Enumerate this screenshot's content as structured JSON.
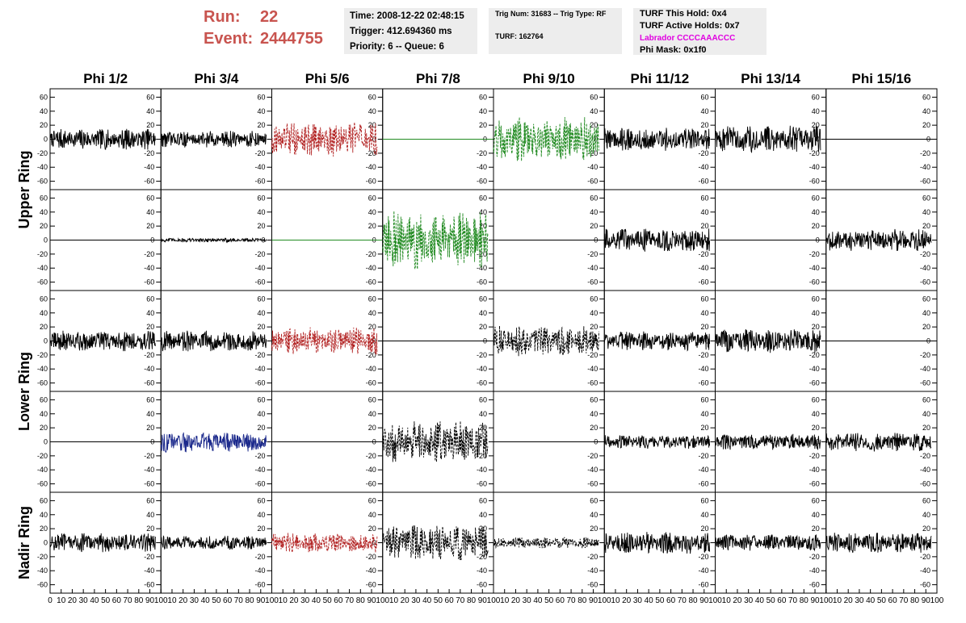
{
  "header": {
    "run_label": "Run:",
    "run_value": "22",
    "event_label": "Event:",
    "event_value": "2444755"
  },
  "info_time": {
    "time": "Time: 2008-12-22 02:48:15",
    "trigger": "Trigger: 412.694360 ms",
    "priority": "Priority: 6 -- Queue: 6"
  },
  "info_trig": {
    "trig": "Trig Num: 31683 -- Trig Type: RF",
    "turf": "TURF: 162764"
  },
  "info_turf": {
    "this_hold": "TURF This Hold: 0x4",
    "active_holds": "TURF Active Holds: 0x7",
    "labrador": "Labrador CCCCAAACCC",
    "phi_mask": "Phi Mask: 0x1f0"
  },
  "colors": {
    "header_red": "#c8544f",
    "labrador_magenta": "#e000e0",
    "black": "#000000",
    "red": "#b22222",
    "green": "#228b22",
    "blue": "#1c2a8c"
  },
  "chart_data": {
    "type": "line",
    "columns": [
      "Phi 1/2",
      "Phi 3/4",
      "Phi 5/6",
      "Phi 7/8",
      "Phi 9/10",
      "Phi 11/12",
      "Phi 13/14",
      "Phi 15/16"
    ],
    "rings": [
      "Upper Ring",
      "Lower Ring",
      "Nadir Ring"
    ],
    "ring_rows": [
      2,
      2,
      1
    ],
    "y_ticks": [
      -60,
      -40,
      -20,
      0,
      20,
      40,
      60
    ],
    "ylim": [
      -72,
      72
    ],
    "x_ticks_first": [
      "0",
      "10",
      "20",
      "30",
      "40",
      "50",
      "60",
      "70",
      "80",
      "90",
      "100"
    ],
    "x_ticks": [
      "10",
      "20",
      "30",
      "40",
      "50",
      "60",
      "70",
      "80",
      "90",
      "100"
    ],
    "xlim": [
      0,
      100
    ],
    "waveform_range": [
      0,
      95
    ],
    "panels": [
      [
        {
          "style": "solid",
          "color": "#000000",
          "amplitude": 15
        },
        {
          "style": "solid",
          "color": "#000000",
          "amplitude": 12
        },
        {
          "style": "dashed",
          "color": "#b22222",
          "amplitude": 25
        },
        {
          "style": "flat",
          "color": "#228b22",
          "amplitude": 0
        },
        {
          "style": "dashed",
          "color": "#228b22",
          "amplitude": 32
        },
        {
          "style": "solid",
          "color": "#000000",
          "amplitude": 17
        },
        {
          "style": "solid",
          "color": "#000000",
          "amplitude": 20
        },
        {
          "style": "flat",
          "color": "#000000",
          "amplitude": 0
        }
      ],
      [
        {
          "style": "flat",
          "color": "#000000",
          "amplitude": 0
        },
        {
          "style": "solid",
          "color": "#000000",
          "amplitude": 3
        },
        {
          "style": "flat",
          "color": "#228b22",
          "amplitude": 0
        },
        {
          "style": "dashed",
          "color": "#228b22",
          "amplitude": 42
        },
        {
          "style": "flat",
          "color": "#000000",
          "amplitude": 0
        },
        {
          "style": "solid",
          "color": "#000000",
          "amplitude": 17
        },
        {
          "style": "flat",
          "color": "#000000",
          "amplitude": 0
        },
        {
          "style": "solid",
          "color": "#000000",
          "amplitude": 16
        }
      ],
      [
        {
          "style": "solid",
          "color": "#000000",
          "amplitude": 15
        },
        {
          "style": "solid",
          "color": "#000000",
          "amplitude": 15
        },
        {
          "style": "dashed",
          "color": "#b22222",
          "amplitude": 20
        },
        {
          "style": "flat",
          "color": "#000000",
          "amplitude": 0
        },
        {
          "style": "dashed",
          "color": "#000000",
          "amplitude": 22
        },
        {
          "style": "solid",
          "color": "#000000",
          "amplitude": 14
        },
        {
          "style": "solid",
          "color": "#000000",
          "amplitude": 17
        },
        {
          "style": "flat",
          "color": "#000000",
          "amplitude": 0
        }
      ],
      [
        {
          "style": "flat",
          "color": "#000000",
          "amplitude": 0
        },
        {
          "style": "solid",
          "color": "#1c2a8c",
          "amplitude": 15
        },
        {
          "style": "flat",
          "color": "#000000",
          "amplitude": 0
        },
        {
          "style": "dashed",
          "color": "#000000",
          "amplitude": 30
        },
        {
          "style": "flat",
          "color": "#000000",
          "amplitude": 0
        },
        {
          "style": "solid",
          "color": "#000000",
          "amplitude": 10
        },
        {
          "style": "solid",
          "color": "#000000",
          "amplitude": 12
        },
        {
          "style": "solid",
          "color": "#000000",
          "amplitude": 14
        }
      ],
      [
        {
          "style": "solid",
          "color": "#000000",
          "amplitude": 14
        },
        {
          "style": "solid",
          "color": "#000000",
          "amplitude": 10
        },
        {
          "style": "dashed",
          "color": "#b22222",
          "amplitude": 15
        },
        {
          "style": "dashed",
          "color": "#000000",
          "amplitude": 26
        },
        {
          "style": "dashed",
          "color": "#000000",
          "amplitude": 8
        },
        {
          "style": "solid",
          "color": "#000000",
          "amplitude": 16
        },
        {
          "style": "solid",
          "color": "#000000",
          "amplitude": 12
        },
        {
          "style": "solid",
          "color": "#000000",
          "amplitude": 15
        }
      ]
    ]
  }
}
